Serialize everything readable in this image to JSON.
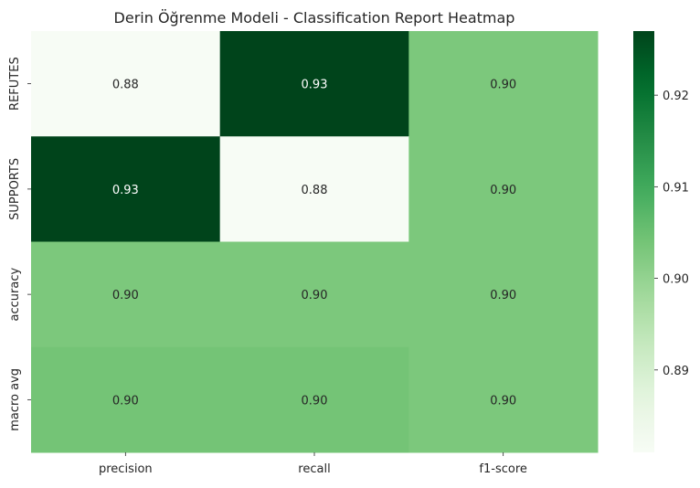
{
  "chart_data": {
    "type": "heatmap",
    "title": "Derin Öğrenme Modeli - Classification Report Heatmap",
    "xlabel": "",
    "ylabel": "",
    "x_categories": [
      "precision",
      "recall",
      "f1-score"
    ],
    "y_categories": [
      "REFUTES",
      "SUPPORTS",
      "accuracy",
      "macro avg"
    ],
    "values": [
      [
        0.881,
        0.927,
        0.903
      ],
      [
        0.927,
        0.881,
        0.903
      ],
      [
        0.903,
        0.903,
        0.903
      ],
      [
        0.904,
        0.904,
        0.903
      ]
    ],
    "annotations": [
      [
        "0.88",
        "0.93",
        "0.90"
      ],
      [
        "0.93",
        "0.88",
        "0.90"
      ],
      [
        "0.90",
        "0.90",
        "0.90"
      ],
      [
        "0.90",
        "0.90",
        "0.90"
      ]
    ],
    "colormap": "Greens",
    "color_range": [
      0.881,
      0.927
    ],
    "colorbar_ticks": [
      0.89,
      0.9,
      0.91,
      0.92
    ],
    "colorbar_tick_labels": [
      "0.89",
      "0.90",
      "0.91",
      "0.92"
    ],
    "legend": "colorbar-right",
    "grid": false
  }
}
